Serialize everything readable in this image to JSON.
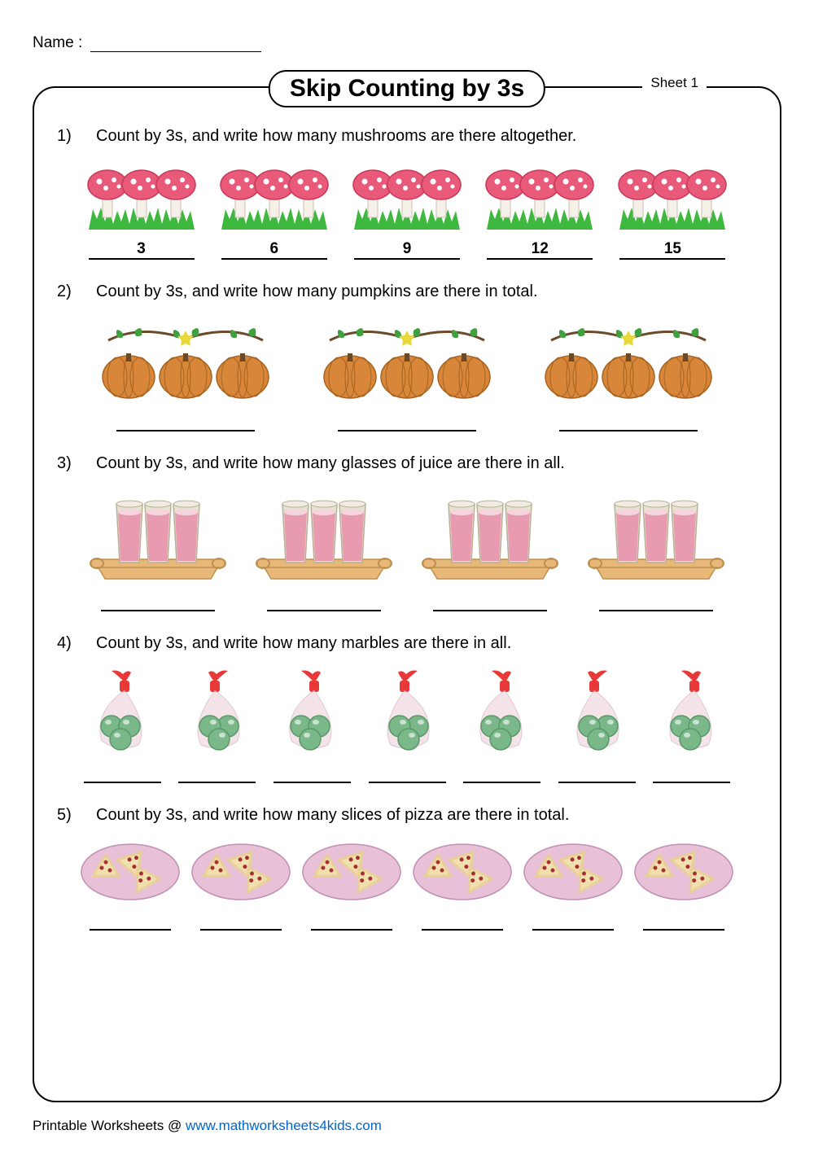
{
  "name_label": "Name :",
  "title": "Skip Counting by 3s",
  "sheet_label": "Sheet 1",
  "footer_text": "Printable Worksheets @ ",
  "footer_link": "www.mathworksheets4kids.com",
  "colors": {
    "mushroom_cap": "#e95a7a",
    "mushroom_cap_stroke": "#c93a5a",
    "mushroom_spot": "#ffffff",
    "mushroom_stem": "#f5f0e8",
    "grass": "#3fb83f",
    "pumpkin": "#d8873a",
    "pumpkin_stroke": "#a86320",
    "pumpkin_leaf": "#3fa03f",
    "pumpkin_vine": "#6b4a2a",
    "pumpkin_star": "#e8d838",
    "juice": "#e89ab0",
    "juice_foam": "#f5d5dd",
    "glass": "#e8e0d0",
    "tray": "#e8b878",
    "tray_stroke": "#c09050",
    "marble": "#7ab88a",
    "marble_stroke": "#5a9868",
    "bag": "#f0d8e0",
    "bag_top": "#e83838",
    "pizza_plate": "#e8c0d8",
    "pizza_plate_stroke": "#c090b0",
    "pizza_crust": "#e8d098",
    "pizza_cheese": "#f0e0b0",
    "pizza_pepperoni": "#a83030"
  },
  "problems": [
    {
      "num": "1)",
      "prompt": "Count by 3s, and write how many mushrooms are there altogether.",
      "type": "mushroom",
      "groups": 5,
      "answers": [
        "3",
        "6",
        "9",
        "12",
        "15"
      ],
      "line_width": 130
    },
    {
      "num": "2)",
      "prompt": "Count by 3s, and write how many pumpkins are there in total.",
      "type": "pumpkin",
      "groups": 3,
      "answers": [
        "",
        "",
        ""
      ],
      "line_width": 170
    },
    {
      "num": "3)",
      "prompt": "Count by 3s, and write how many glasses of juice are there in all.",
      "type": "juice",
      "groups": 4,
      "answers": [
        "",
        "",
        "",
        ""
      ],
      "line_width": 140
    },
    {
      "num": "4)",
      "prompt": "Count by 3s, and write how many marbles are there in all.",
      "type": "marble",
      "groups": 7,
      "answers": [
        "",
        "",
        "",
        "",
        "",
        "",
        ""
      ],
      "line_width": 95
    },
    {
      "num": "5)",
      "prompt": "Count by 3s, and write how many slices of pizza are there in total.",
      "type": "pizza",
      "groups": 6,
      "answers": [
        "",
        "",
        "",
        "",
        "",
        ""
      ],
      "line_width": 100
    }
  ]
}
